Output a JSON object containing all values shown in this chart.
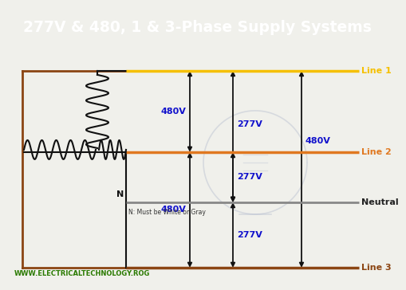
{
  "title": "277V & 480, 1 & 3-Phase Supply Systems",
  "title_bg": "#2e7d0a",
  "title_color": "#ffffff",
  "bg_color": "#f0f0eb",
  "line1_color": "#f5c000",
  "line2_color": "#e07820",
  "neutral_color": "#888888",
  "line3_color": "#8B4513",
  "wire_color": "#111111",
  "voltage_color": "#1010cc",
  "arrow_color": "#111111",
  "label_line1": "Line 1",
  "label_line2": "Line 2",
  "label_neutral": "Neutral",
  "label_line3": "Line 3",
  "label_N": "N",
  "label_note": "N: Must be White or Gray",
  "label_website": "WWW.ELECTRICALTECHNOLOGY.ROG",
  "outer_box_color": "#8B4513",
  "v277_top": "277V",
  "v480_left": "480V",
  "v480_right": "480V",
  "v480_bottom": "480V",
  "v277_mid": "277V",
  "v277_bottom": "277V"
}
